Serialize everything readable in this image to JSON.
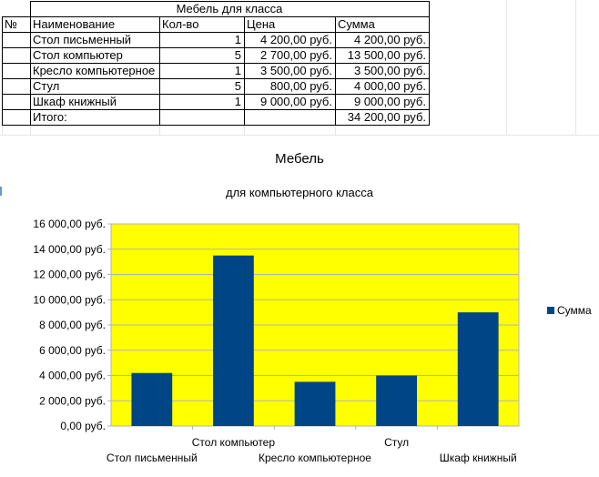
{
  "table": {
    "title": "Мебель для класса",
    "headers": [
      "№",
      "Наименование",
      "Кол-во",
      "Цена",
      "Сумма"
    ],
    "rows": [
      {
        "num": "",
        "name": "Стол письменный",
        "qty": "1",
        "price": "4 200,00 руб.",
        "sum": "4 200,00 руб."
      },
      {
        "num": "",
        "name": "Стол компьютер",
        "qty": "5",
        "price": "2 700,00 руб.",
        "sum": "13 500,00 руб."
      },
      {
        "num": "",
        "name": "Кресло компьютерное",
        "qty": "1",
        "price": "3 500,00 руб.",
        "sum": "3 500,00 руб."
      },
      {
        "num": "",
        "name": "Стул",
        "qty": "5",
        "price": "800,00 руб.",
        "sum": "4 000,00 руб."
      },
      {
        "num": "",
        "name": "Шкаф книжный",
        "qty": "1",
        "price": "9 000,00 руб.",
        "sum": "9 000,00 руб."
      }
    ],
    "total_label": "Итого:",
    "total_value": "34 200,00 руб."
  },
  "chart_data": {
    "type": "bar",
    "title": "Мебель",
    "subtitle": "для компьютерного класса",
    "categories": [
      "Стол письменный",
      "Стол компьютер",
      "Кресло компьютерное",
      "Стул",
      "Шкаф книжный"
    ],
    "series": [
      {
        "name": "Сумма",
        "values": [
          4200,
          13500,
          3500,
          4000,
          9000
        ]
      }
    ],
    "ylim": [
      0,
      16000
    ],
    "ytick_step": 2000,
    "ytick_labels": [
      "0,00 руб.",
      "2 000,00 руб.",
      "4 000,00 руб.",
      "6 000,00 руб.",
      "8 000,00 руб.",
      "10 000,00 руб.",
      "12 000,00 руб.",
      "14 000,00 руб.",
      "16 000,00 руб."
    ],
    "grid": true,
    "legend": "right",
    "colors": {
      "plot_background": "#ffff00",
      "bar": "#004586",
      "grid": "#b3b3b3"
    }
  }
}
